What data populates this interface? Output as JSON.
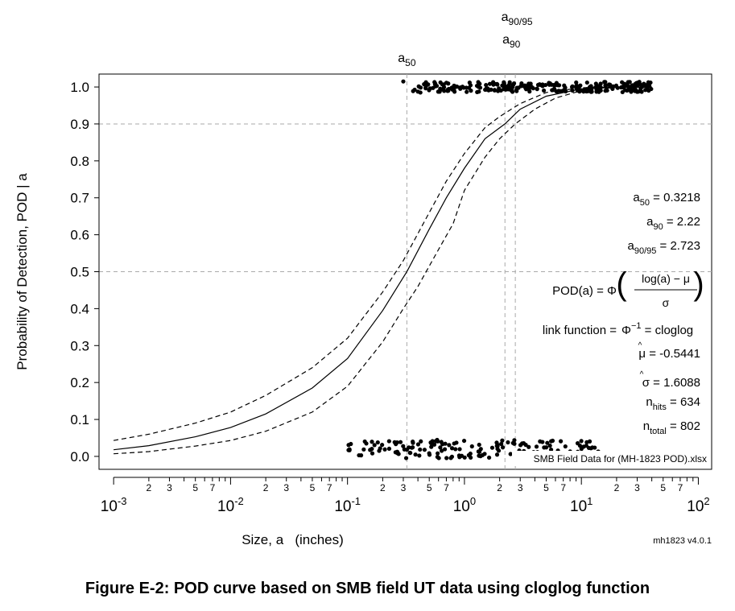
{
  "caption": "Figure E-2: POD curve based on SMB field UT data using cloglog function",
  "chart_data": {
    "type": "line",
    "xscale": "log10",
    "xlim": [
      0.00075,
      130
    ],
    "ylim": [
      -0.035,
      1.035
    ],
    "xlabel": "Size, a   (inches)",
    "ylabel": "Probability of Detection, POD | a",
    "y_ticks": [
      "0.0",
      "0.1",
      "0.2",
      "0.3",
      "0.4",
      "0.5",
      "0.6",
      "0.7",
      "0.8",
      "0.9",
      "1.0"
    ],
    "x_major_ticks": [
      {
        "value": 0.001,
        "base": "10",
        "exp": "-3"
      },
      {
        "value": 0.01,
        "base": "10",
        "exp": "-2"
      },
      {
        "value": 0.1,
        "base": "10",
        "exp": "-1"
      },
      {
        "value": 1,
        "base": "10",
        "exp": "0"
      },
      {
        "value": 10,
        "base": "10",
        "exp": "1"
      },
      {
        "value": 100,
        "base": "10",
        "exp": "2"
      }
    ],
    "x_minor_labels": [
      "2",
      "3",
      "5",
      "7"
    ],
    "reference_lines": {
      "horizontal": [
        0.5,
        0.9
      ],
      "vertical": [
        {
          "value": 0.3218,
          "label": "a",
          "sub": "50"
        },
        {
          "value": 2.22,
          "label": "a",
          "sub": "90"
        },
        {
          "value": 2.723,
          "label": "a",
          "sub": "90/95"
        }
      ]
    },
    "series": [
      {
        "role": "pod",
        "style": "solid",
        "x": [
          0.001,
          0.002,
          0.005,
          0.01,
          0.02,
          0.05,
          0.1,
          0.2,
          0.3218,
          0.5,
          0.7,
          1.0,
          1.5,
          2.22,
          3,
          5,
          10,
          20,
          40
        ],
        "y": [
          0.018,
          0.029,
          0.053,
          0.078,
          0.115,
          0.185,
          0.265,
          0.395,
          0.5,
          0.615,
          0.7,
          0.78,
          0.86,
          0.9,
          0.94,
          0.975,
          0.995,
          0.999,
          1.0
        ]
      },
      {
        "role": "upper-bound",
        "style": "dashed",
        "x": [
          0.001,
          0.002,
          0.005,
          0.01,
          0.02,
          0.05,
          0.1,
          0.2,
          0.3,
          0.5,
          0.7,
          1.0,
          1.5,
          2.0,
          3,
          5,
          10,
          20,
          40
        ],
        "y": [
          0.043,
          0.06,
          0.09,
          0.12,
          0.165,
          0.24,
          0.32,
          0.445,
          0.53,
          0.66,
          0.745,
          0.82,
          0.89,
          0.92,
          0.955,
          0.985,
          0.998,
          1.0,
          1.0
        ]
      },
      {
        "role": "lower-bound",
        "style": "dashed",
        "x": [
          0.001,
          0.002,
          0.005,
          0.01,
          0.02,
          0.05,
          0.1,
          0.2,
          0.3,
          0.4,
          0.6,
          0.8,
          1.0,
          1.5,
          2.0,
          2.723,
          4,
          6,
          10,
          20,
          40
        ],
        "y": [
          0.007,
          0.013,
          0.028,
          0.043,
          0.068,
          0.12,
          0.19,
          0.31,
          0.4,
          0.46,
          0.56,
          0.63,
          0.72,
          0.81,
          0.86,
          0.9,
          0.94,
          0.97,
          0.99,
          0.999,
          1.0
        ]
      }
    ],
    "hits_range": [
      0.35,
      40
    ],
    "hits_isolated": [
      0.3,
      0.42
    ],
    "misses_range": [
      0.1,
      15
    ],
    "annotations": [
      {
        "key": "a",
        "sub": "50",
        "value": " = 0.3218"
      },
      {
        "key": "a",
        "sub": "90",
        "value": " = 2.22"
      },
      {
        "key": "a",
        "sub": "90/95",
        "value": " = 2.723"
      },
      {
        "key": "link function = ",
        "value": " = cloglog"
      },
      {
        "key": "μ",
        "value": " = -0.5441"
      },
      {
        "key": "σ",
        "value": " = 1.6088"
      },
      {
        "key": "n",
        "sub": "hits",
        "value": " = 634"
      },
      {
        "key": "n",
        "sub": "total",
        "value": " = 802"
      }
    ],
    "formula": {
      "lhs": "POD(a) = Φ",
      "numerator": "log(a) − μ",
      "denominator": "σ",
      "inverse": "Φ",
      "inverse_exp": "−1",
      "hat": "^"
    },
    "data_file": "SMB Field Data for (MH-1823 POD).xlsx",
    "version": "mh1823 v4.0.1"
  }
}
